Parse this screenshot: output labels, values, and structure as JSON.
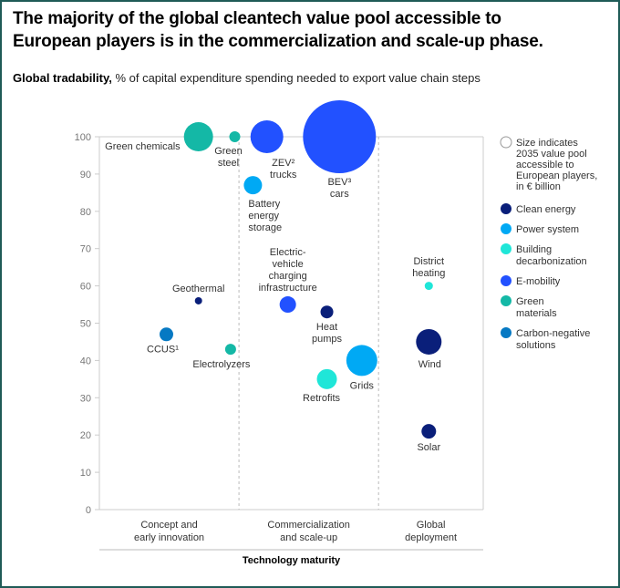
{
  "title": "The majority of the global cleantech value pool accessible to European players is in the commercialization and scale-up phase.",
  "subtitle_bold": "Global tradability,",
  "subtitle_rest": " % of capital expenditure spending needed to export value chain steps",
  "chart_data": {
    "type": "scatter",
    "subtype": "bubble",
    "title": "The majority of the global cleantech value pool accessible to European players is in the commercialization and scale-up phase.",
    "ylabel": "Global tradability, % of capital expenditure spending needed to export value chain steps",
    "xlabel": "Technology maturity",
    "ylim": [
      0,
      100
    ],
    "yticks": [
      0,
      10,
      20,
      30,
      40,
      50,
      60,
      70,
      80,
      90,
      100
    ],
    "x_categories": [
      "Concept and early innovation",
      "Commercialization and scale-up",
      "Global deployment"
    ],
    "x_category_lines": [
      "Concept and|early innovation",
      "Commercialization|and scale-up",
      "Global|deployment"
    ],
    "x_boundaries": [
      1.0,
      2.0
    ],
    "xlim": [
      0,
      2.75
    ],
    "grid": false,
    "legend_position": "right",
    "size_note": [
      "Size indicates",
      "2035 value pool",
      "accessible to",
      "European players,",
      "in € billion"
    ],
    "groups": [
      {
        "name": "Clean energy",
        "lines": [
          "Clean energy"
        ],
        "color": "#0a1f7a"
      },
      {
        "name": "Power system",
        "lines": [
          "Power system"
        ],
        "color": "#00a9f4"
      },
      {
        "name": "Building decarbonization",
        "lines": [
          "Building",
          "decarbonization"
        ],
        "color": "#1fe6d8"
      },
      {
        "name": "E-mobility",
        "lines": [
          "E-mobility"
        ],
        "color": "#2251ff"
      },
      {
        "name": "Green materials",
        "lines": [
          "Green",
          "materials"
        ],
        "color": "#14b8a6"
      },
      {
        "name": "Carbon-negative solutions",
        "lines": [
          "Carbon-negative",
          "solutions"
        ],
        "color": "#0679c3"
      }
    ],
    "points": [
      {
        "name": "Green chemicals",
        "group": "Green materials",
        "x": 0.71,
        "y": 100,
        "size": 16,
        "label": [
          "Green chemicals"
        ],
        "label_pos": "left"
      },
      {
        "name": "Green steel",
        "group": "Green materials",
        "x": 0.97,
        "y": 100,
        "size": 6,
        "label": [
          "Green",
          "steel"
        ],
        "label_pos": "below-left"
      },
      {
        "name": "ZEV² trucks",
        "group": "E-mobility",
        "x": 1.2,
        "y": 100,
        "size": 18,
        "label": [
          "ZEV²",
          "trucks"
        ],
        "label_pos": "below"
      },
      {
        "name": "BEV³ cars",
        "group": "E-mobility",
        "x": 1.72,
        "y": 100,
        "size": 40,
        "label": [
          "BEV³",
          "cars"
        ],
        "label_pos": "below"
      },
      {
        "name": "Battery energy storage",
        "group": "Power system",
        "x": 1.1,
        "y": 87,
        "size": 10,
        "label": [
          "Battery",
          "energy",
          "storage"
        ],
        "label_pos": "below-right"
      },
      {
        "name": "Electric-vehicle charging infrastructure",
        "group": "E-mobility",
        "x": 1.35,
        "y": 55,
        "size": 9,
        "label": [
          "Electric-",
          "vehicle",
          "charging",
          "infrastructure"
        ],
        "label_pos": "above"
      },
      {
        "name": "Heat pumps",
        "group": "Clean energy",
        "x": 1.63,
        "y": 53,
        "size": 7,
        "label": [
          "Heat",
          "pumps"
        ],
        "label_pos": "below"
      },
      {
        "name": "Retrofits",
        "group": "Building decarbonization",
        "x": 1.63,
        "y": 35,
        "size": 11,
        "label": [
          "Retrofits"
        ],
        "label_pos": "below"
      },
      {
        "name": "Grids",
        "group": "Power system",
        "x": 1.88,
        "y": 40,
        "size": 17,
        "label": [
          "Grids"
        ],
        "label_pos": "below"
      },
      {
        "name": "District heating",
        "group": "Building decarbonization",
        "x": 2.36,
        "y": 60,
        "size": 4.5,
        "label": [
          "District",
          "heating"
        ],
        "label_pos": "above"
      },
      {
        "name": "Wind",
        "group": "Clean energy",
        "x": 2.36,
        "y": 45,
        "size": 14,
        "label": [
          "Wind"
        ],
        "label_pos": "below"
      },
      {
        "name": "Solar",
        "group": "Clean energy",
        "x": 2.36,
        "y": 21,
        "size": 8,
        "label": [
          "Solar"
        ],
        "label_pos": "below"
      },
      {
        "name": "Geothermal",
        "group": "Clean energy",
        "x": 0.71,
        "y": 56,
        "size": 4,
        "label": [
          "Geothermal"
        ],
        "label_pos": "above"
      },
      {
        "name": "CCUS¹",
        "group": "Carbon-negative solutions",
        "x": 0.48,
        "y": 47,
        "size": 7.5,
        "label": [
          "CCUS¹"
        ],
        "label_pos": "below-left"
      },
      {
        "name": "Electrolyzers",
        "group": "Green materials",
        "x": 0.94,
        "y": 43,
        "size": 6,
        "label": [
          "Electrolyzers"
        ],
        "label_pos": "below"
      }
    ]
  }
}
